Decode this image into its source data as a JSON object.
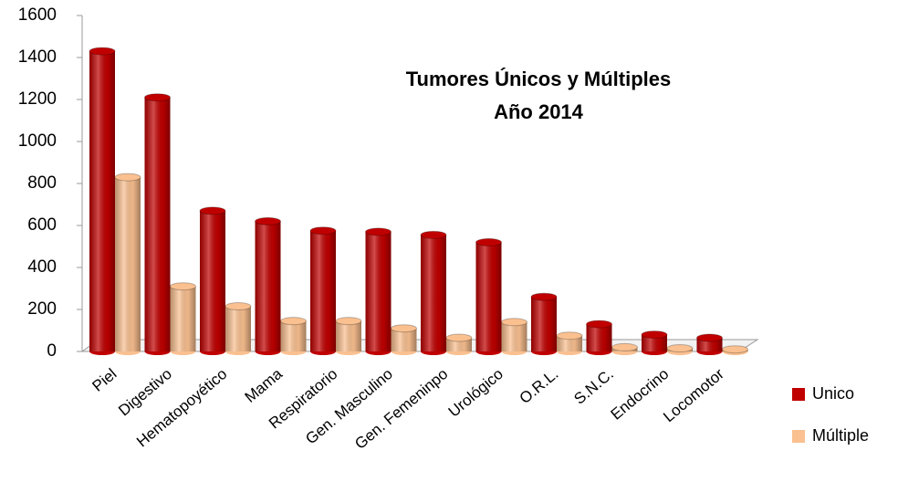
{
  "chart_data": {
    "type": "bar",
    "title": "Tumores Únicos y Múltiples",
    "subtitle": "Año 2014",
    "categories": [
      "Piel",
      "Digestivo",
      "Hematopoyético",
      "Mama",
      "Respiratorio",
      "Gen. Masculino",
      "Gen. Femeninpo",
      "Urológico",
      "O.R.L.",
      "S.N.C.",
      "Endocrino",
      "Locomotor"
    ],
    "series": [
      {
        "name": "Unico",
        "color": "#c00000",
        "values": [
          1430,
          1210,
          670,
          620,
          575,
          570,
          555,
          520,
          260,
          130,
          80,
          65
        ]
      },
      {
        "name": "Múltiple",
        "color": "#fac090",
        "values": [
          830,
          310,
          215,
          145,
          145,
          110,
          65,
          140,
          75,
          20,
          15,
          10
        ]
      }
    ],
    "ylim": [
      0,
      1600
    ],
    "yticks": [
      0,
      200,
      400,
      600,
      800,
      1000,
      1200,
      1400,
      1600
    ],
    "grid": false,
    "legend": "right"
  }
}
